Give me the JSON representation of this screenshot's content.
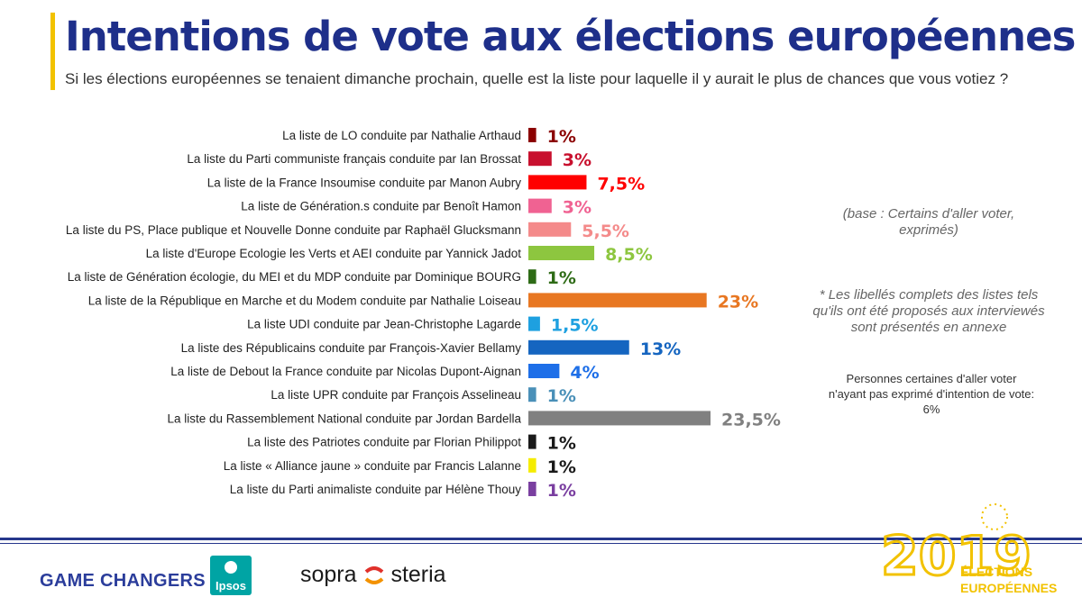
{
  "header": {
    "title": "Intentions de vote aux élections européennes",
    "subtitle": "Si les élections européennes se tenaient dimanche prochain, quelle est la liste pour laquelle il y aurait le plus de chances que vous votiez ?"
  },
  "chart_data": {
    "type": "bar",
    "orientation": "horizontal",
    "categories": [
      "La liste de LO conduite par Nathalie Arthaud",
      "La liste du Parti communiste français conduite par Ian Brossat",
      "La liste de la France Insoumise conduite par Manon Aubry",
      "La liste de Génération.s conduite par Benoît Hamon",
      "La liste du PS, Place publique et Nouvelle Donne conduite par Raphaël Glucksmann",
      "La liste d'Europe Ecologie les Verts et AEI conduite par Yannick Jadot",
      "La liste de Génération écologie, du MEI et du MDP conduite par Dominique BOURG",
      "La liste de la République en Marche et du Modem conduite par Nathalie Loiseau",
      "La liste UDI conduite par Jean-Christophe Lagarde",
      "La liste des Républicains conduite par François-Xavier Bellamy",
      "La liste de Debout la France conduite par Nicolas Dupont-Aignan",
      "La liste UPR conduite par François Asselineau",
      "La liste du Rassemblement National conduite par Jordan Bardella",
      "La liste des Patriotes conduite par Florian Philippot",
      "La liste « Alliance jaune » conduite par Francis Lalanne",
      "La liste du Parti animaliste conduite par Hélène Thouy"
    ],
    "values": [
      1,
      3,
      7.5,
      3,
      5.5,
      8.5,
      1,
      23,
      1.5,
      13,
      4,
      1,
      23.5,
      1,
      1,
      1
    ],
    "labels": [
      "1%",
      "3%",
      "7,5%",
      "3%",
      "5,5%",
      "8,5%",
      "1%",
      "23%",
      "1,5%",
      "13%",
      "4%",
      "1%",
      "23,5%",
      "1%",
      "1%",
      "1%"
    ],
    "colors": [
      "#8b0000",
      "#c8102e",
      "#ff0000",
      "#f06292",
      "#f48a8a",
      "#8dc63f",
      "#2e6b16",
      "#e87722",
      "#1ea0e0",
      "#1565c0",
      "#1e6fe8",
      "#4a90b8",
      "#808080",
      "#1a1a1a",
      "#f5ec00",
      "#7a3fa0"
    ],
    "xlim": [
      0,
      23.5
    ]
  },
  "notes": {
    "base": "(base : Certains d'aller voter, exprimés)",
    "footnote": "* Les libellés complets des listes tels qu'ils ont été proposés aux interviewés sont présentés en annexe",
    "unexpressed": "Personnes certaines d'aller voter n'ayant pas exprimé d'intention de vote: 6%"
  },
  "footer": {
    "brand_text": "GAME CHANGERS",
    "ipsos_logo": "Ipsos",
    "sopra_left": "sopra",
    "sopra_right": "steria",
    "logo_year": "2019",
    "logo_line1": "ÉLECTIONS",
    "logo_line2": "EUROPÉENNES"
  }
}
